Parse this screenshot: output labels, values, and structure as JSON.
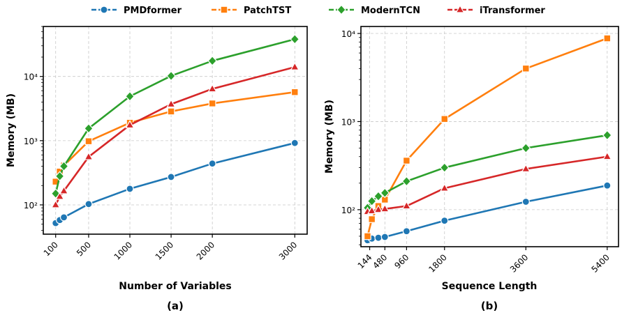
{
  "legend": [
    {
      "name": "PMDformer",
      "color": "#1f77b4",
      "marker": "circle"
    },
    {
      "name": "PatchTST",
      "color": "#ff7f0e",
      "marker": "square"
    },
    {
      "name": "ModernTCN",
      "color": "#2ca02c",
      "marker": "diamond"
    },
    {
      "name": "iTransformer",
      "color": "#d62728",
      "marker": "triangle"
    }
  ],
  "chart_data": [
    {
      "type": "line",
      "panel_label": "(a)",
      "xlabel": "Number of Variables",
      "ylabel": "Memory (MB)",
      "yscale": "log",
      "xlim": [
        -50,
        3150
      ],
      "ylim": [
        35,
        60000
      ],
      "xticks": [
        100,
        500,
        1000,
        1500,
        2000,
        3000
      ],
      "yticks": [
        {
          "value": 100,
          "label": "10²"
        },
        {
          "value": 1000,
          "label": "10³"
        },
        {
          "value": 10000,
          "label": "10⁴"
        }
      ],
      "x": [
        100,
        150,
        200,
        500,
        1000,
        1500,
        2000,
        3000
      ],
      "grid": true,
      "series": [
        {
          "name": "PMDformer",
          "values": [
            52,
            58,
            64,
            103,
            178,
            272,
            440,
            920
          ]
        },
        {
          "name": "PatchTST",
          "values": [
            230,
            330,
            410,
            980,
            1900,
            2850,
            3800,
            5700
          ]
        },
        {
          "name": "ModernTCN",
          "values": [
            150,
            280,
            400,
            1550,
            4900,
            10200,
            17500,
            38000
          ]
        },
        {
          "name": "iTransformer",
          "values": [
            100,
            135,
            165,
            560,
            1750,
            3700,
            6400,
            14000
          ]
        }
      ]
    },
    {
      "type": "line",
      "panel_label": "(b)",
      "xlabel": "Sequence Length",
      "ylabel": "Memory (MB)",
      "yscale": "log",
      "xlim": [
        -50,
        5650
      ],
      "ylim": [
        38,
        12000
      ],
      "xticks": [
        144,
        480,
        960,
        1800,
        3600,
        5400
      ],
      "yticks": [
        {
          "value": 100,
          "label": "10²"
        },
        {
          "value": 1000,
          "label": "10³"
        },
        {
          "value": 10000,
          "label": "10⁴"
        }
      ],
      "x": [
        96,
        192,
        336,
        480,
        960,
        1800,
        3600,
        5400
      ],
      "grid": true,
      "series": [
        {
          "name": "PMDformer",
          "values": [
            45,
            47,
            48,
            49,
            57,
            75,
            123,
            188
          ]
        },
        {
          "name": "PatchTST",
          "values": [
            50,
            78,
            110,
            130,
            360,
            1070,
            4000,
            8800
          ]
        },
        {
          "name": "ModernTCN",
          "values": [
            105,
            125,
            142,
            155,
            210,
            300,
            500,
            700
          ]
        },
        {
          "name": "iTransformer",
          "values": [
            95,
            97,
            100,
            102,
            110,
            175,
            290,
            400
          ]
        }
      ]
    }
  ]
}
